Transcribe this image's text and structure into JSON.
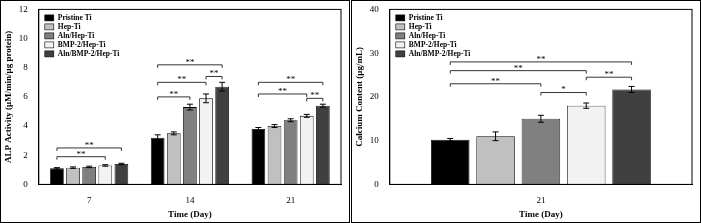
{
  "chart_data": [
    {
      "type": "bar",
      "y_label": "ALP Activity (μM/min/μg protein)",
      "x_label": "Time (Day)",
      "categories": [
        "7",
        "14",
        "21"
      ],
      "series": [
        {
          "name": "Pristine Ti",
          "color": "#000000",
          "values": [
            1.1,
            3.2,
            3.8
          ],
          "errors": [
            0.05,
            0.2,
            0.1
          ]
        },
        {
          "name": "Hep-Ti",
          "color": "#c0c0c0",
          "values": [
            1.15,
            3.5,
            4.0
          ],
          "errors": [
            0.05,
            0.1,
            0.1
          ]
        },
        {
          "name": "Aln/Hep-Ti",
          "color": "#808080",
          "values": [
            1.2,
            5.3,
            4.4
          ],
          "errors": [
            0.05,
            0.2,
            0.1
          ]
        },
        {
          "name": "BMP-2/Hep-Ti",
          "color": "#f2f2f2",
          "values": [
            1.3,
            5.9,
            4.7
          ],
          "errors": [
            0.05,
            0.3,
            0.1
          ]
        },
        {
          "name": "Aln/BMP-2/Hep-Ti",
          "color": "#404040",
          "values": [
            1.4,
            6.7,
            5.4
          ],
          "errors": [
            0.05,
            0.3,
            0.1
          ]
        }
      ],
      "ylim": [
        0,
        12
      ],
      "yticks": [
        0,
        2,
        4,
        6,
        8,
        10,
        12
      ],
      "grid": false,
      "legend": "top-left",
      "annotations": [
        {
          "category": "7",
          "from": "Pristine Ti",
          "to": "BMP-2/Hep-Ti",
          "y": 1.9,
          "label": "**"
        },
        {
          "category": "7",
          "from": "Pristine Ti",
          "to": "Aln/BMP-2/Hep-Ti",
          "y": 2.5,
          "label": "**"
        },
        {
          "category": "14",
          "from": "Pristine Ti",
          "to": "Aln/Hep-Ti",
          "y": 6.0,
          "label": "**"
        },
        {
          "category": "14",
          "from": "Pristine Ti",
          "to": "BMP-2/Hep-Ti",
          "y": 7.0,
          "label": "**"
        },
        {
          "category": "14",
          "from": "BMP-2/Hep-Ti",
          "to": "Aln/BMP-2/Hep-Ti",
          "y": 7.4,
          "label": "**"
        },
        {
          "category": "14",
          "from": "Pristine Ti",
          "to": "Aln/BMP-2/Hep-Ti",
          "y": 8.2,
          "label": "**"
        },
        {
          "category": "21",
          "from": "BMP-2/Hep-Ti",
          "to": "Aln/BMP-2/Hep-Ti",
          "y": 5.9,
          "label": "**"
        },
        {
          "category": "21",
          "from": "Pristine Ti",
          "to": "BMP-2/Hep-Ti",
          "y": 6.2,
          "label": "**"
        },
        {
          "category": "21",
          "from": "Pristine Ti",
          "to": "Aln/BMP-2/Hep-Ti",
          "y": 7.0,
          "label": "**"
        }
      ]
    },
    {
      "type": "bar",
      "y_label": "Calcium Content (μg/mL)",
      "x_label": "Time (Day)",
      "categories": [
        "21"
      ],
      "series": [
        {
          "name": "Pristine Ti",
          "color": "#000000",
          "values": [
            10.2
          ],
          "errors": [
            0.3
          ]
        },
        {
          "name": "Hep-Ti",
          "color": "#c0c0c0",
          "values": [
            11.0
          ],
          "errors": [
            1.0
          ]
        },
        {
          "name": "Aln/Hep-Ti",
          "color": "#808080",
          "values": [
            15.0
          ],
          "errors": [
            0.8
          ]
        },
        {
          "name": "BMP-2/Hep-Ti",
          "color": "#f2f2f2",
          "values": [
            18.0
          ],
          "errors": [
            0.6
          ]
        },
        {
          "name": "Aln/BMP-2/Hep-Ti",
          "color": "#404040",
          "values": [
            21.7
          ],
          "errors": [
            0.7
          ]
        }
      ],
      "ylim": [
        0,
        40
      ],
      "yticks": [
        0,
        10,
        20,
        30,
        40
      ],
      "grid": false,
      "legend": "top-left",
      "annotations": [
        {
          "category": "21",
          "from": "Aln/Hep-Ti",
          "to": "BMP-2/Hep-Ti",
          "y": 21,
          "label": "*"
        },
        {
          "category": "21",
          "from": "Pristine Ti",
          "to": "Aln/Hep-Ti",
          "y": 23,
          "label": "**"
        },
        {
          "category": "21",
          "from": "BMP-2/Hep-Ti",
          "to": "Aln/BMP-2/Hep-Ti",
          "y": 24.5,
          "label": "**"
        },
        {
          "category": "21",
          "from": "Pristine Ti",
          "to": "BMP-2/Hep-Ti",
          "y": 26,
          "label": "**"
        },
        {
          "category": "21",
          "from": "Pristine Ti",
          "to": "Aln/BMP-2/Hep-Ti",
          "y": 28,
          "label": "**"
        }
      ]
    }
  ]
}
